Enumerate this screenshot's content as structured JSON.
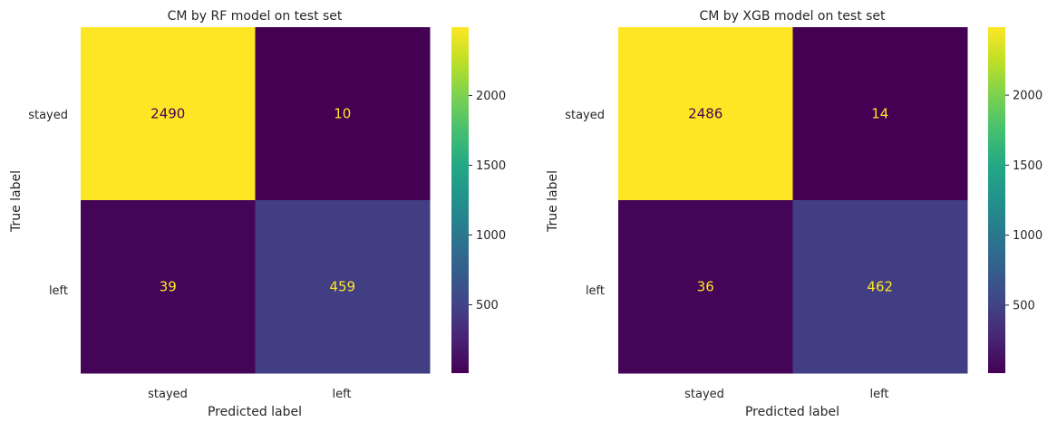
{
  "chart_data": [
    {
      "type": "heatmap",
      "title": "CM by RF model on test set",
      "xlabel": "Predicted label",
      "ylabel": "True label",
      "x_categories": [
        "stayed",
        "left"
      ],
      "y_categories": [
        "stayed",
        "left"
      ],
      "matrix": [
        [
          2490,
          10
        ],
        [
          39,
          459
        ]
      ],
      "colormap": "viridis",
      "colorbar_ticks": [
        500,
        1000,
        1500,
        2000
      ]
    },
    {
      "type": "heatmap",
      "title": "CM by XGB model on test set",
      "xlabel": "Predicted label",
      "ylabel": "True label",
      "x_categories": [
        "stayed",
        "left"
      ],
      "y_categories": [
        "stayed",
        "left"
      ],
      "matrix": [
        [
          2486,
          14
        ],
        [
          36,
          462
        ]
      ],
      "colormap": "viridis",
      "colorbar_ticks": [
        500,
        1000,
        1500,
        2000
      ]
    }
  ],
  "colors": {
    "low": "#440154",
    "high": "#fde725",
    "text_light": "#fde725",
    "text_dark": "#440154"
  }
}
